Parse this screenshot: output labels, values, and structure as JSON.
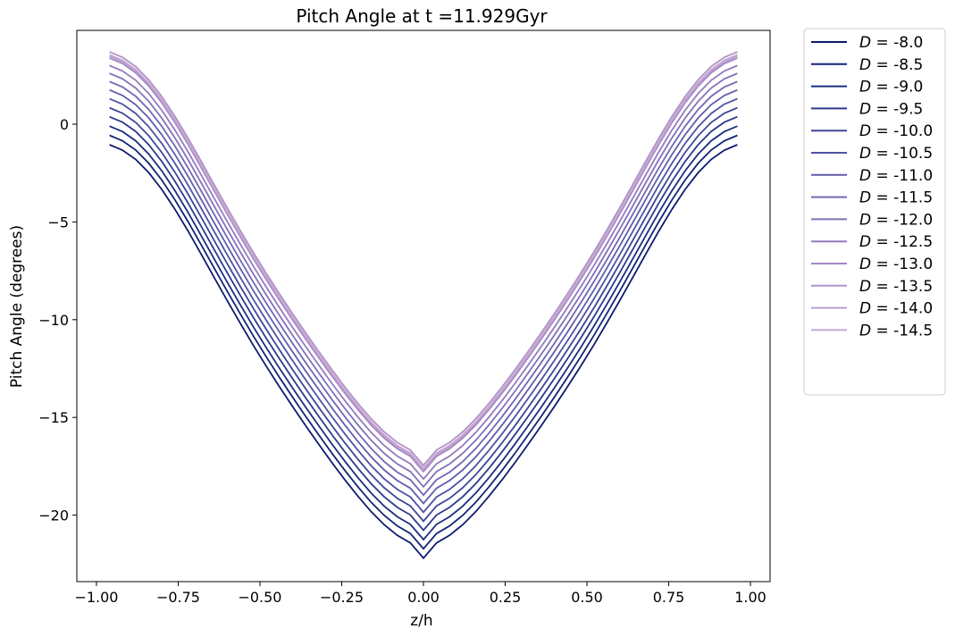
{
  "chart_data": {
    "type": "line",
    "title": "Pitch Angle at t =11.929Gyr",
    "xlabel": "z/h",
    "ylabel": "Pitch Angle (degrees)",
    "xlim": [
      -1.06,
      1.06
    ],
    "ylim": [
      -23.4,
      4.8
    ],
    "x_ticks": [
      -1.0,
      -0.75,
      -0.5,
      -0.25,
      0.0,
      0.25,
      0.5,
      0.75,
      1.0
    ],
    "x_tick_labels": [
      "−1.00",
      "−0.75",
      "−0.50",
      "−0.25",
      "0.00",
      "0.25",
      "0.50",
      "0.75",
      "1.00"
    ],
    "y_ticks": [
      -20,
      -15,
      -10,
      -5,
      0
    ],
    "y_tick_labels": [
      "−20",
      "−15",
      "−10",
      "−5",
      "0"
    ],
    "grid": false,
    "legend_placement": "outside-right-top",
    "x": [
      -0.96,
      -0.92,
      -0.88,
      -0.84,
      -0.8,
      -0.76,
      -0.72,
      -0.68,
      -0.64,
      -0.6,
      -0.56,
      -0.52,
      -0.48,
      -0.44,
      -0.4,
      -0.36,
      -0.32,
      -0.28,
      -0.24,
      -0.2,
      -0.16,
      -0.12,
      -0.08,
      -0.04,
      0.0,
      0.04,
      0.08,
      0.12,
      0.16,
      0.2,
      0.24,
      0.28,
      0.32,
      0.36,
      0.4,
      0.44,
      0.48,
      0.52,
      0.56,
      0.6,
      0.64,
      0.68,
      0.72,
      0.76,
      0.8,
      0.84,
      0.88,
      0.92,
      0.96
    ],
    "series": [
      {
        "name": "-8.0",
        "color": "#0d1b6e",
        "values": [
          -1.05,
          -1.33,
          -1.8,
          -2.48,
          -3.34,
          -4.35,
          -5.46,
          -6.64,
          -7.84,
          -9.03,
          -10.19,
          -11.32,
          -12.4,
          -13.44,
          -14.45,
          -15.43,
          -16.38,
          -17.31,
          -18.2,
          -19.04,
          -19.82,
          -20.49,
          -21.03,
          -21.42,
          -22.2,
          -21.42,
          -21.03,
          -20.49,
          -19.82,
          -19.04,
          -18.2,
          -17.31,
          -16.38,
          -15.43,
          -14.45,
          -13.44,
          -12.4,
          -11.32,
          -10.19,
          -9.03,
          -7.84,
          -6.64,
          -5.46,
          -4.35,
          -3.34,
          -2.48,
          -1.8,
          -1.33,
          -1.05
        ]
      },
      {
        "name": "-8.5",
        "color": "#102475",
        "values": [
          -0.57,
          -0.85,
          -1.32,
          -2.0,
          -2.86,
          -3.87,
          -4.98,
          -6.16,
          -7.36,
          -8.55,
          -9.71,
          -10.84,
          -11.92,
          -12.96,
          -13.97,
          -14.95,
          -15.9,
          -16.83,
          -17.72,
          -18.56,
          -19.34,
          -20.01,
          -20.55,
          -20.94,
          -21.72,
          -20.94,
          -20.55,
          -20.01,
          -19.34,
          -18.56,
          -17.72,
          -16.83,
          -15.9,
          -14.95,
          -13.97,
          -12.96,
          -11.92,
          -10.84,
          -9.71,
          -8.55,
          -7.36,
          -6.16,
          -4.98,
          -3.87,
          -2.86,
          -2.0,
          -1.32,
          -0.85,
          -0.57
        ]
      },
      {
        "name": "-9.0",
        "color": "#1c2d7e",
        "values": [
          -0.1,
          -0.38,
          -0.85,
          -1.53,
          -2.39,
          -3.4,
          -4.51,
          -5.69,
          -6.89,
          -8.08,
          -9.24,
          -10.37,
          -11.45,
          -12.49,
          -13.5,
          -14.48,
          -15.43,
          -16.36,
          -17.25,
          -18.09,
          -18.87,
          -19.54,
          -20.08,
          -20.47,
          -21.25,
          -20.47,
          -20.08,
          -19.54,
          -18.87,
          -18.09,
          -17.25,
          -16.36,
          -15.43,
          -14.48,
          -13.5,
          -12.49,
          -11.45,
          -10.37,
          -9.24,
          -8.08,
          -6.89,
          -5.69,
          -4.51,
          -3.4,
          -2.39,
          -1.53,
          -0.85,
          -0.38,
          -0.1
        ]
      },
      {
        "name": "-9.5",
        "color": "#2c3a8a",
        "values": [
          0.38,
          0.1,
          -0.37,
          -1.05,
          -1.91,
          -2.92,
          -4.03,
          -5.21,
          -6.41,
          -7.6,
          -8.76,
          -9.89,
          -10.97,
          -12.01,
          -13.02,
          -14.0,
          -14.95,
          -15.88,
          -16.77,
          -17.61,
          -18.39,
          -19.06,
          -19.6,
          -19.99,
          -20.77,
          -19.99,
          -19.6,
          -19.06,
          -18.39,
          -17.61,
          -16.77,
          -15.88,
          -14.95,
          -14.0,
          -13.02,
          -12.01,
          -10.97,
          -9.89,
          -8.76,
          -7.6,
          -6.41,
          -5.21,
          -4.03,
          -2.92,
          -1.91,
          -1.05,
          -0.37,
          0.1,
          0.38
        ]
      },
      {
        "name": "-10.0",
        "color": "#3e4696",
        "values": [
          0.84,
          0.56,
          0.09,
          -0.59,
          -1.45,
          -2.46,
          -3.57,
          -4.75,
          -5.95,
          -7.14,
          -8.3,
          -9.43,
          -10.51,
          -11.55,
          -12.56,
          -13.54,
          -14.49,
          -15.42,
          -16.31,
          -17.15,
          -17.93,
          -18.6,
          -19.14,
          -19.53,
          -20.31,
          -19.53,
          -19.14,
          -18.6,
          -17.93,
          -17.15,
          -16.31,
          -15.42,
          -14.49,
          -13.54,
          -12.56,
          -11.55,
          -10.51,
          -9.43,
          -8.3,
          -7.14,
          -5.95,
          -4.75,
          -3.57,
          -2.46,
          -1.45,
          -0.59,
          0.09,
          0.56,
          0.84
        ]
      },
      {
        "name": "-10.5",
        "color": "#4f52a2",
        "values": [
          1.3,
          1.02,
          0.55,
          -0.13,
          -0.99,
          -2.0,
          -3.11,
          -4.29,
          -5.49,
          -6.68,
          -7.84,
          -8.97,
          -10.05,
          -11.09,
          -12.1,
          -13.08,
          -14.03,
          -14.96,
          -15.85,
          -16.69,
          -17.47,
          -18.14,
          -18.68,
          -19.07,
          -19.85,
          -19.07,
          -18.68,
          -18.14,
          -17.47,
          -16.69,
          -15.85,
          -14.96,
          -14.03,
          -13.08,
          -12.1,
          -11.09,
          -10.05,
          -8.97,
          -7.84,
          -6.68,
          -5.49,
          -4.29,
          -3.11,
          -2.0,
          -0.99,
          -0.13,
          0.55,
          1.02,
          1.3
        ]
      },
      {
        "name": "-11.0",
        "color": "#605cab",
        "values": [
          1.75,
          1.47,
          1.0,
          0.32,
          -0.54,
          -1.55,
          -2.66,
          -3.84,
          -5.04,
          -6.23,
          -7.39,
          -8.52,
          -9.6,
          -10.64,
          -11.65,
          -12.63,
          -13.58,
          -14.51,
          -15.4,
          -16.24,
          -17.02,
          -17.69,
          -18.23,
          -18.62,
          -19.4,
          -18.62,
          -18.23,
          -17.69,
          -17.02,
          -16.24,
          -15.4,
          -14.51,
          -13.58,
          -12.63,
          -11.65,
          -10.64,
          -9.6,
          -8.52,
          -7.39,
          -6.23,
          -5.04,
          -3.84,
          -2.66,
          -1.55,
          -0.54,
          0.32,
          1.0,
          1.47,
          1.75
        ]
      },
      {
        "name": "-11.5",
        "color": "#7267b3",
        "values": [
          2.18,
          1.9,
          1.43,
          0.75,
          -0.11,
          -1.12,
          -2.23,
          -3.41,
          -4.61,
          -5.8,
          -6.96,
          -8.09,
          -9.17,
          -10.21,
          -11.22,
          -12.2,
          -13.15,
          -14.08,
          -14.97,
          -15.81,
          -16.59,
          -17.26,
          -17.8,
          -18.19,
          -18.97,
          -18.19,
          -17.8,
          -17.26,
          -16.59,
          -15.81,
          -14.97,
          -14.08,
          -13.15,
          -12.2,
          -11.22,
          -10.21,
          -9.17,
          -8.09,
          -6.96,
          -5.8,
          -4.61,
          -3.41,
          -2.23,
          -1.12,
          -0.11,
          0.75,
          1.43,
          1.9,
          2.18
        ]
      },
      {
        "name": "-12.0",
        "color": "#8271b9",
        "values": [
          2.6,
          2.32,
          1.85,
          1.17,
          0.31,
          -0.7,
          -1.81,
          -2.99,
          -4.19,
          -5.38,
          -6.54,
          -7.67,
          -8.75,
          -9.79,
          -10.8,
          -11.78,
          -12.73,
          -13.66,
          -14.55,
          -15.39,
          -16.17,
          -16.84,
          -17.38,
          -17.77,
          -18.55,
          -17.77,
          -17.38,
          -16.84,
          -16.17,
          -15.39,
          -14.55,
          -13.66,
          -12.73,
          -11.78,
          -10.8,
          -9.79,
          -8.75,
          -7.67,
          -6.54,
          -5.38,
          -4.19,
          -2.99,
          -1.81,
          -0.7,
          0.31,
          1.17,
          1.85,
          2.32,
          2.6
        ]
      },
      {
        "name": "-12.5",
        "color": "#927bbf",
        "values": [
          3.0,
          2.72,
          2.25,
          1.57,
          0.71,
          -0.3,
          -1.41,
          -2.59,
          -3.79,
          -4.98,
          -6.14,
          -7.27,
          -8.35,
          -9.39,
          -10.4,
          -11.38,
          -12.33,
          -13.26,
          -14.15,
          -14.99,
          -15.77,
          -16.44,
          -16.98,
          -17.37,
          -18.15,
          -17.37,
          -16.98,
          -16.44,
          -15.77,
          -14.99,
          -14.15,
          -13.26,
          -12.33,
          -11.38,
          -10.4,
          -9.39,
          -8.35,
          -7.27,
          -6.14,
          -4.98,
          -3.79,
          -2.59,
          -1.41,
          -0.3,
          0.71,
          1.57,
          2.25,
          2.72,
          3.0
        ]
      },
      {
        "name": "-13.0",
        "color": "#a287c4",
        "values": [
          3.38,
          3.1,
          2.63,
          1.95,
          1.09,
          0.08,
          -1.03,
          -2.21,
          -3.41,
          -4.6,
          -5.76,
          -6.89,
          -7.97,
          -9.01,
          -10.02,
          -11.0,
          -11.95,
          -12.88,
          -13.77,
          -14.61,
          -15.39,
          -16.06,
          -16.6,
          -16.99,
          -17.77,
          -16.99,
          -16.6,
          -16.06,
          -15.39,
          -14.61,
          -13.77,
          -12.88,
          -11.95,
          -11.0,
          -10.02,
          -9.01,
          -7.97,
          -6.89,
          -5.76,
          -4.6,
          -3.41,
          -2.21,
          -1.03,
          0.08,
          1.09,
          1.95,
          2.63,
          3.1,
          3.38
        ]
      },
      {
        "name": "-13.5",
        "color": "#b093c9",
        "values": [
          3.7,
          3.42,
          2.95,
          2.27,
          1.41,
          0.4,
          -0.71,
          -1.89,
          -3.09,
          -4.28,
          -5.44,
          -6.57,
          -7.65,
          -8.69,
          -9.7,
          -10.68,
          -11.63,
          -12.56,
          -13.45,
          -14.29,
          -15.07,
          -15.74,
          -16.28,
          -16.67,
          -17.45,
          -16.67,
          -16.28,
          -15.74,
          -15.07,
          -14.29,
          -13.45,
          -12.56,
          -11.63,
          -10.68,
          -9.7,
          -8.69,
          -7.65,
          -6.57,
          -5.44,
          -4.28,
          -3.09,
          -1.89,
          -0.71,
          0.4,
          1.41,
          2.27,
          2.95,
          3.42,
          3.7
        ]
      },
      {
        "name": "-14.0",
        "color": "#bc9dcd",
        "values": [
          3.48,
          3.2,
          2.73,
          2.05,
          1.19,
          0.18,
          -0.93,
          -2.11,
          -3.31,
          -4.5,
          -5.66,
          -6.79,
          -7.87,
          -8.91,
          -9.92,
          -10.9,
          -11.85,
          -12.78,
          -13.67,
          -14.51,
          -15.29,
          -15.96,
          -16.5,
          -16.89,
          -17.67,
          -16.89,
          -16.5,
          -15.96,
          -15.29,
          -14.51,
          -13.67,
          -12.78,
          -11.85,
          -10.9,
          -9.92,
          -8.91,
          -7.87,
          -6.79,
          -5.66,
          -4.5,
          -3.31,
          -2.11,
          -0.93,
          0.18,
          1.19,
          2.05,
          2.73,
          3.2,
          3.48
        ]
      },
      {
        "name": "-14.5",
        "color": "#c8a8d3",
        "values": [
          3.55,
          3.27,
          2.8,
          2.12,
          1.26,
          0.25,
          -0.86,
          -2.04,
          -3.24,
          -4.43,
          -5.59,
          -6.72,
          -7.8,
          -8.84,
          -9.85,
          -10.83,
          -11.78,
          -12.71,
          -13.6,
          -14.44,
          -15.22,
          -15.89,
          -16.43,
          -16.82,
          -17.6,
          -16.82,
          -16.43,
          -15.89,
          -15.22,
          -14.44,
          -13.6,
          -12.71,
          -11.78,
          -10.83,
          -9.85,
          -8.84,
          -7.8,
          -6.72,
          -5.59,
          -4.43,
          -3.24,
          -2.04,
          -0.86,
          0.25,
          1.26,
          2.12,
          2.8,
          3.27,
          3.55
        ]
      }
    ],
    "legend_symbol": "D"
  }
}
